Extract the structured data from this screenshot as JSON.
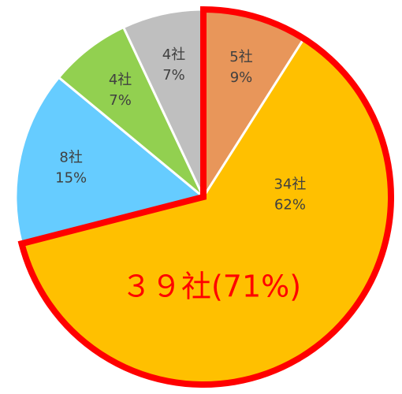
{
  "chart_data": {
    "type": "pie",
    "categories": [
      "5社",
      "34社",
      "8社",
      "4社",
      "4社"
    ],
    "values": [
      9,
      62,
      15,
      7,
      7
    ],
    "value_labels": [
      "9%",
      "62%",
      "15%",
      "7%",
      "7%"
    ],
    "colors": [
      "#e8965a",
      "#ffc000",
      "#66ccff",
      "#92d050",
      "#bfbfbf"
    ],
    "highlight": [
      0,
      1
    ],
    "highlight_color": "#ff0000",
    "annotation": "３９社(71%)"
  }
}
